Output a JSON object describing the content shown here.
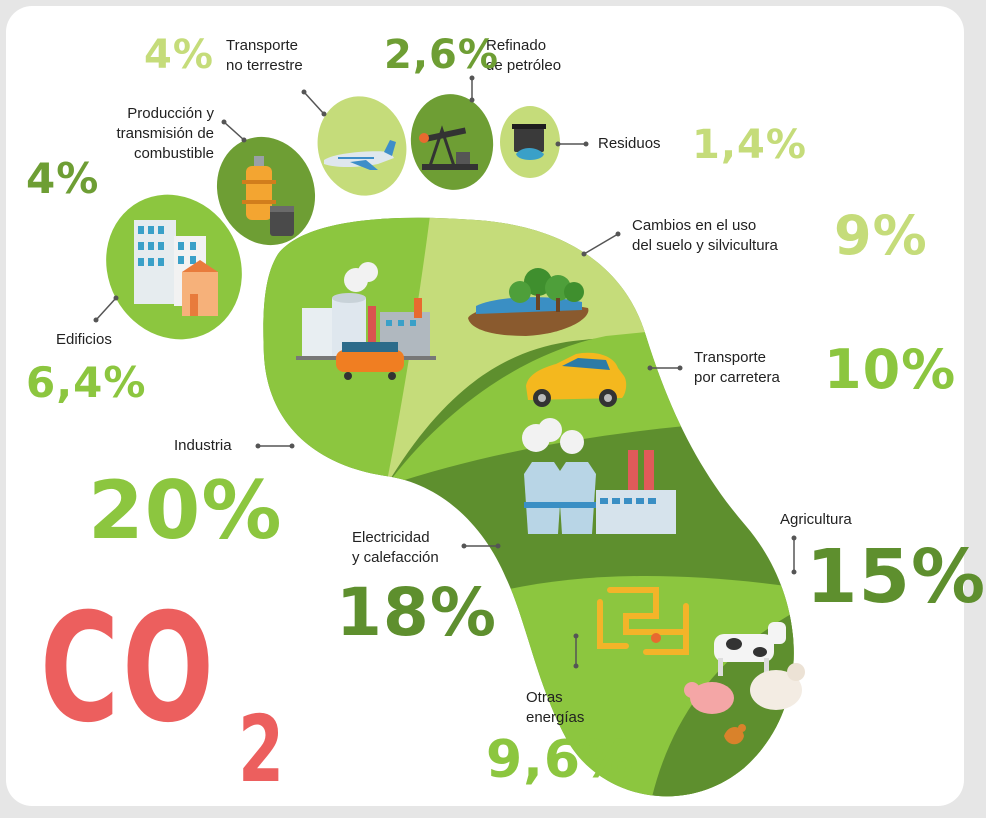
{
  "title": {
    "c": "CO",
    "sub": "2"
  },
  "colors": {
    "dark_green": "#5e8f2e",
    "mid_green": "#8cc63f",
    "light_green": "#b9d56b",
    "pale_green": "#cfe38f",
    "co2_red": "#ec5f5e"
  },
  "sectors": [
    {
      "label": "Transporte\nno terrestre",
      "value": "4%",
      "icon": "airplane-icon"
    },
    {
      "label": "Refinado\nde petróleo",
      "value": "2,6%",
      "icon": "oil-pump-icon"
    },
    {
      "label": "Residuos",
      "value": "1,4%",
      "icon": "waste-bin-icon"
    },
    {
      "label": "Producción y\ntransmisión de\ncombustible",
      "value": "4%",
      "icon": "fuel-tank-icon"
    },
    {
      "label": "Edificios",
      "value": "6,4%",
      "icon": "buildings-icon"
    },
    {
      "label": "Cambios en el uso\ndel suelo y silvicultura",
      "value": "9%",
      "icon": "trees-icon"
    },
    {
      "label": "Transporte\npor carretera",
      "value": "10%",
      "icon": "car-icon"
    },
    {
      "label": "Industria",
      "value": "20%",
      "icon": "factory-icon"
    },
    {
      "label": "Electricidad\ny calefacción",
      "value": "18%",
      "icon": "power-plant-icon"
    },
    {
      "label": "Agricultura",
      "value": "15%",
      "icon": "farm-animals-icon"
    },
    {
      "label": "Otras\nenergías",
      "value": "9,6%",
      "icon": "pipes-icon"
    }
  ]
}
